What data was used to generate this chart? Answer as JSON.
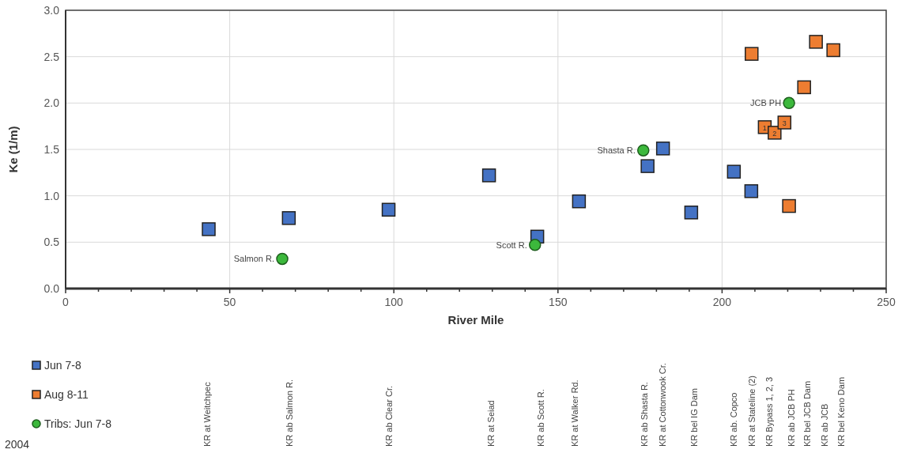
{
  "chart_data": {
    "type": "scatter",
    "xlabel": "River Mile",
    "ylabel": "Ke (1/m)",
    "xlim": [
      0,
      250
    ],
    "ylim": [
      0,
      3
    ],
    "xticks": [
      0,
      {
        "value": 10,
        "label": null
      },
      {
        "value": 20,
        "label": null
      },
      {
        "value": 30,
        "label": null
      },
      {
        "value": 40,
        "label": null
      },
      50,
      {
        "value": 60,
        "label": null
      },
      {
        "value": 70,
        "label": null
      },
      {
        "value": 80,
        "label": null
      },
      {
        "value": 90,
        "label": null
      },
      100,
      {
        "value": 110,
        "label": null
      },
      {
        "value": 120,
        "label": null
      },
      {
        "value": 130,
        "label": null
      },
      {
        "value": 140,
        "label": null
      },
      150,
      {
        "value": 160,
        "label": null
      },
      {
        "value": 170,
        "label": null
      },
      {
        "value": 180,
        "label": null
      },
      {
        "value": 190,
        "label": null
      },
      200,
      {
        "value": 210,
        "label": null
      },
      {
        "value": 220,
        "label": null
      },
      {
        "value": 230,
        "label": null
      },
      {
        "value": 240,
        "label": null
      },
      250
    ],
    "yticks": [
      {
        "value": 0,
        "label": "0.0"
      },
      {
        "value": 0.5,
        "label": "0.5"
      },
      {
        "value": 1,
        "label": "1.0"
      },
      {
        "value": 1.5,
        "label": "1.5"
      },
      {
        "value": 2,
        "label": "2.0"
      },
      {
        "value": 2.5,
        "label": "2.5"
      },
      {
        "value": 3,
        "label": "3.0"
      }
    ],
    "grid": true,
    "legend": "bottom left",
    "series": [
      {
        "name": "Jun 7-8",
        "color": "#4472c4",
        "marker": "square",
        "x": [
          43.6,
          68,
          98.4,
          129,
          143.7,
          156.4,
          177.3,
          182,
          190.6,
          203.6,
          208.9
        ],
        "values": [
          0.64,
          0.76,
          0.85,
          1.22,
          0.56,
          0.94,
          1.32,
          1.51,
          0.82,
          1.26,
          1.05
        ]
      },
      {
        "name": "Aug 8-11",
        "color": "#ed7d31",
        "marker": "square",
        "x": [
          209,
          228.6,
          233.9,
          225,
          213,
          216,
          219,
          220.4
        ],
        "values": [
          2.53,
          2.66,
          2.57,
          2.17,
          1.74,
          1.68,
          1.79,
          0.89
        ]
      },
      {
        "name": "Tribs: Jun 7-8",
        "color": "#3cb83c",
        "marker": "circle",
        "x": [
          66,
          143,
          176,
          220.4
        ],
        "values": [
          0.32,
          0.47,
          1.49,
          2.0
        ]
      }
    ],
    "annotations": [
      {
        "text": "Salmon R.",
        "x": 66,
        "y": 0.32
      },
      {
        "text": "Scott R.",
        "x": 143,
        "y": 0.47
      },
      {
        "text": "Shasta R.",
        "x": 176,
        "y": 1.49
      },
      {
        "text": "JCB PH",
        "x": 220.4,
        "y": 2.0
      },
      {
        "text": "1",
        "x": 213,
        "y": 1.74
      },
      {
        "text": "2",
        "x": 216,
        "y": 1.68
      },
      {
        "text": "3",
        "x": 219,
        "y": 1.79
      },
      "KR at Weitchpec",
      "KR ab Salmon R.",
      "KR ab Clear Cr.",
      "KR at Seiad",
      "KR ab Scott R.",
      "KR at Walker Rd.",
      "KR ab Shasta R.",
      "KR at Cottonwook Cr.",
      "KR bel IG Dam",
      "KR ab. Copco",
      "KR at Stateline (2)",
      "KR Bypass 1, 2, 3",
      "KR ab JCB PH",
      "KR bel JCB Dam",
      "KR ab JCB",
      "KR bel Keno Dam",
      "2004"
    ]
  }
}
